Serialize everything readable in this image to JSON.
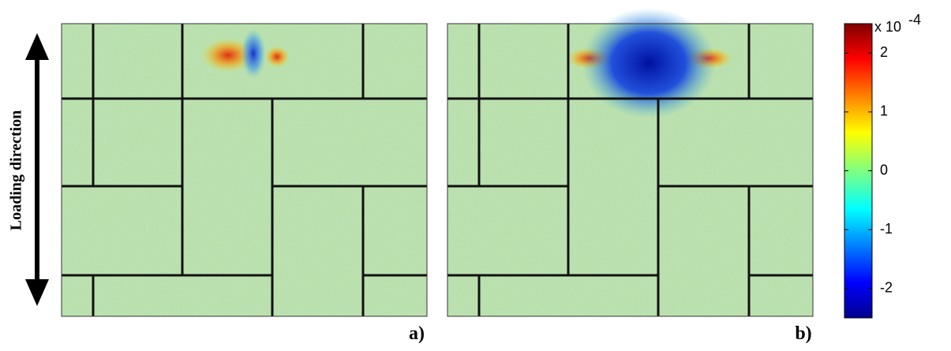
{
  "figure": {
    "y_label": "Loading direction",
    "panels": [
      {
        "label": "a)"
      },
      {
        "label": "b)"
      }
    ],
    "colorbar": {
      "exponent_prefix": "x 10",
      "exponent": "-4",
      "ylim": [
        -2.5,
        2.5
      ],
      "yticks": [
        2,
        1,
        0,
        -1,
        -2
      ]
    }
  }
}
